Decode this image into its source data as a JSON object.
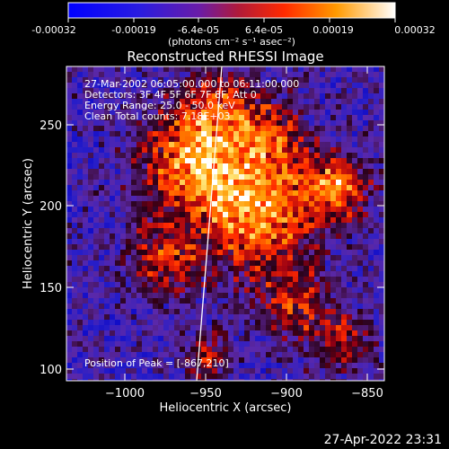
{
  "colorbar": {
    "tick_labels": [
      "-0.00032",
      "-0.00019",
      "-6.4e-05",
      "6.4e-05",
      "0.00019",
      "0.00032"
    ],
    "unit_label": "(photons cm⁻² s⁻¹ asec⁻²)"
  },
  "plot": {
    "title": "Reconstructed RHESSI Image",
    "xlabel": "Heliocentric X (arcsec)",
    "ylabel": "Heliocentric Y (arcsec)",
    "x_ticks": [
      "−1000",
      "−950",
      "−900",
      "−850"
    ],
    "y_ticks": [
      "100",
      "150",
      "200",
      "250"
    ],
    "info_lines": [
      "27-Mar-2002 06:05:00.000 to 06:11:00.000",
      "Detectors: 3F 4F 5F 6F 7F 8F, Att 0",
      "Energy Range: 25.0 - 50.0 keV",
      "Clean     Total counts: 7.18E+03"
    ],
    "peak_text": "Position of Peak = [-867,210]"
  },
  "footer": {
    "timestamp": "27-Apr-2022 23:31"
  },
  "colors": {
    "background": "#000000",
    "text": "#ffffff"
  }
}
